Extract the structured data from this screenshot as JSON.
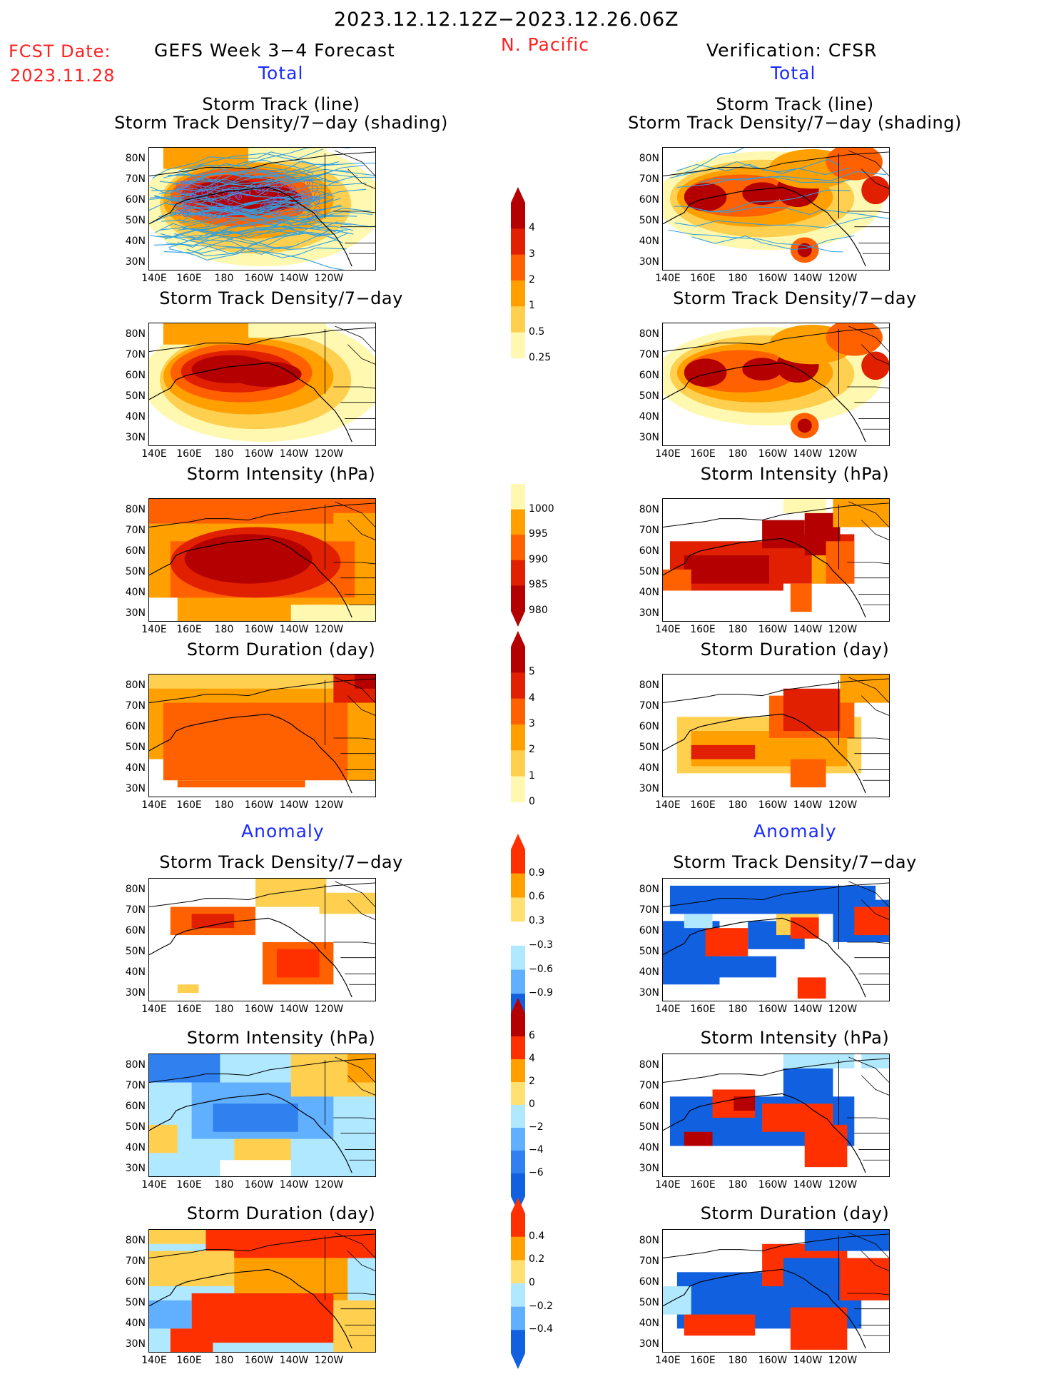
{
  "header": {
    "date_range": "2023.12.12.12Z−2023.12.26.06Z",
    "fcst_label": "FCST Date:",
    "fcst_date": "2023.11.28",
    "left_title": "GEFS Week 3−4 Forecast",
    "region": "N. Pacific",
    "right_title": "Verification: CFSR"
  },
  "sections": {
    "total_left": "Total",
    "total_right": "Total",
    "anomaly_left": "Anomaly",
    "anomaly_right": "Anomaly"
  },
  "panels": [
    {
      "title1": "Storm Track (line)",
      "title2": "Storm Track Density/7−day (shading)"
    },
    {
      "title1": "Storm Track Density/7−day"
    },
    {
      "title1": "Storm Intensity (hPa)"
    },
    {
      "title1": "Storm Duration (day)"
    },
    {
      "title1": "Storm Track Density/7−day"
    },
    {
      "title1": "Storm Intensity (hPa)"
    },
    {
      "title1": "Storm Duration (day)"
    }
  ],
  "axes": {
    "lat_labels": [
      "80N",
      "70N",
      "60N",
      "50N",
      "40N",
      "30N"
    ],
    "lon_labels": [
      "140E",
      "160E",
      "180",
      "160W",
      "140W",
      "120W"
    ]
  },
  "colorbars": [
    {
      "name": "density-total",
      "labels": [
        "4",
        "3",
        "2",
        "1",
        "0.5",
        "0.25"
      ],
      "colors": [
        "#b40000",
        "#e02000",
        "#ff6000",
        "#ffa000",
        "#ffd050",
        "#fff8b0"
      ]
    },
    {
      "name": "intensity-total",
      "labels": [
        "1000",
        "995",
        "990",
        "985",
        "980"
      ],
      "colors": [
        "#fff8b0",
        "#ffa000",
        "#ff6000",
        "#e02000",
        "#b40000"
      ]
    },
    {
      "name": "duration-total",
      "labels": [
        "5",
        "4",
        "3",
        "2",
        "1",
        "0"
      ],
      "colors": [
        "#b40000",
        "#e02000",
        "#ff6000",
        "#ffa000",
        "#ffd050",
        "#fff8b0"
      ]
    },
    {
      "name": "density-anom",
      "labels": [
        "0.9",
        "0.6",
        "0.3",
        "−0.3",
        "−0.6",
        "−0.9"
      ],
      "colors": [
        "#ff3000",
        "#ffa000",
        "#ffe070",
        "#ffffff",
        "#b0e8ff",
        "#60b0ff",
        "#1060e0"
      ]
    },
    {
      "name": "intensity-anom",
      "labels": [
        "6",
        "4",
        "2",
        "0",
        "−2",
        "−4",
        "−6"
      ],
      "colors": [
        "#b40000",
        "#ff3000",
        "#ffa000",
        "#ffe070",
        "#b0e8ff",
        "#60b0ff",
        "#3080f0",
        "#1060e0"
      ]
    },
    {
      "name": "duration-anom",
      "labels": [
        "0.4",
        "0.2",
        "0",
        "−0.2",
        "−0.4"
      ],
      "colors": [
        "#ff3000",
        "#ffa000",
        "#ffe070",
        "#b0e8ff",
        "#60b0ff",
        "#1060e0"
      ]
    }
  ]
}
